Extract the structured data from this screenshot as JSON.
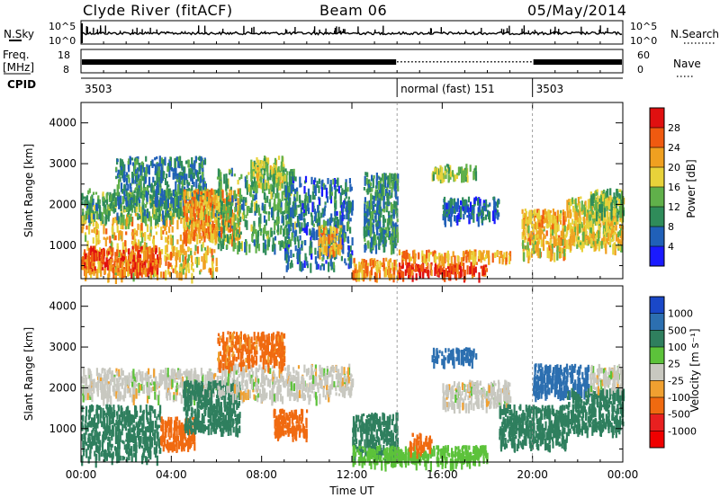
{
  "header": {
    "station": "Clyde River (fitACF)",
    "beam": "Beam 06",
    "date": "05/May/2014"
  },
  "strips": {
    "nsky": {
      "label": "N.Sky",
      "ticks": [
        "10^5",
        "10^0"
      ],
      "right_label": "N.Search",
      "right_ticks": [
        "10^5",
        "10^0"
      ]
    },
    "freq": {
      "label_lines": [
        "Freq.",
        "[MHz]"
      ],
      "ticks": [
        "18",
        "8"
      ],
      "right_label": "Nave",
      "right_ticks": [
        "60",
        "0"
      ]
    },
    "cpid": {
      "label": "CPID",
      "segments": [
        {
          "label": "3503",
          "start_h": 0,
          "end_h": 14
        },
        {
          "label": "normal (fast) 151",
          "start_h": 14,
          "end_h": 20
        },
        {
          "label": "3503",
          "start_h": 20,
          "end_h": 24
        }
      ]
    }
  },
  "chart_data": [
    {
      "type": "heatmap",
      "name": "power",
      "xlim": [
        0,
        24
      ],
      "ylim": [
        180,
        4500
      ],
      "ylabel": "Slant Range [km]",
      "yticks": [
        1000,
        2000,
        3000,
        4000
      ],
      "colorbar": {
        "label": "Power [dB]",
        "ticks": [
          "4",
          "8",
          "12",
          "16",
          "20",
          "24",
          "28"
        ],
        "colors": [
          "#1a1aff",
          "#2060b8",
          "#2f8c5a",
          "#60b04a",
          "#e8d23a",
          "#f0a020",
          "#f05a10",
          "#e01010"
        ],
        "range": [
          0,
          32
        ]
      },
      "regions": [
        {
          "x0": 0.0,
          "x1": 6.0,
          "y0": 300,
          "y1": 1800,
          "value": 20
        },
        {
          "x0": 0.0,
          "x1": 3.5,
          "y0": 400,
          "y1": 1000,
          "value": 26
        },
        {
          "x0": 0.0,
          "x1": 6.0,
          "y0": 1700,
          "y1": 2400,
          "value": 12
        },
        {
          "x0": 1.5,
          "x1": 5.5,
          "y0": 2100,
          "y1": 3200,
          "value": 9
        },
        {
          "x0": 4.5,
          "x1": 7.0,
          "y0": 1200,
          "y1": 2400,
          "value": 22
        },
        {
          "x0": 6.0,
          "x1": 9.5,
          "y0": 1000,
          "y1": 2900,
          "value": 12
        },
        {
          "x0": 7.5,
          "x1": 9.0,
          "y0": 2500,
          "y1": 3200,
          "value": 16
        },
        {
          "x0": 9.0,
          "x1": 12.0,
          "y0": 500,
          "y1": 2700,
          "value": 8
        },
        {
          "x0": 10.5,
          "x1": 11.5,
          "y0": 900,
          "y1": 1500,
          "value": 20
        },
        {
          "x0": 12.0,
          "x1": 14.0,
          "y0": 300,
          "y1": 700,
          "value": 22
        },
        {
          "x0": 12.5,
          "x1": 14.0,
          "y0": 1000,
          "y1": 2800,
          "value": 10
        },
        {
          "x0": 14.0,
          "x1": 18.0,
          "y0": 300,
          "y1": 600,
          "value": 28
        },
        {
          "x0": 14.0,
          "x1": 19.0,
          "y0": 700,
          "y1": 900,
          "value": 22
        },
        {
          "x0": 15.5,
          "x1": 17.5,
          "y0": 2700,
          "y1": 3000,
          "value": 14
        },
        {
          "x0": 16.0,
          "x1": 18.5,
          "y0": 1700,
          "y1": 2200,
          "value": 7
        },
        {
          "x0": 19.5,
          "x1": 21.5,
          "y0": 800,
          "y1": 1900,
          "value": 20
        },
        {
          "x0": 21.5,
          "x1": 24.0,
          "y0": 1000,
          "y1": 2200,
          "value": 18
        },
        {
          "x0": 22.5,
          "x1": 24.0,
          "y0": 1800,
          "y1": 2400,
          "value": 14
        }
      ]
    },
    {
      "type": "heatmap",
      "name": "velocity",
      "xlim": [
        0,
        24
      ],
      "ylim": [
        180,
        4500
      ],
      "ylabel": "Slant Range [km]",
      "xlabel": "Time UT",
      "yticks": [
        1000,
        2000,
        3000,
        4000
      ],
      "xticks": [
        "00:00",
        "04:00",
        "08:00",
        "12:00",
        "16:00",
        "20:00",
        "00:00"
      ],
      "colorbar": {
        "label": "Velocity [m s⁻¹]",
        "ticks": [
          "1000",
          "500",
          "100",
          "25",
          "-25",
          "-100",
          "-500",
          "-1000"
        ],
        "colors": [
          "#1a48c8",
          "#2c6fb0",
          "#2f7f5e",
          "#5cc23a",
          "#c8c8c0",
          "#f0a030",
          "#f06a10",
          "#e82020",
          "#f00000"
        ],
        "range": [
          -1000,
          1000
        ]
      },
      "regions": [
        {
          "x0": 0.0,
          "x1": 3.5,
          "y0": 300,
          "y1": 1600,
          "value": 150
        },
        {
          "x0": 0.0,
          "x1": 6.0,
          "y0": 1800,
          "y1": 2500,
          "value": 0
        },
        {
          "x0": 3.5,
          "x1": 5.0,
          "y0": 600,
          "y1": 1300,
          "value": -150
        },
        {
          "x0": 4.5,
          "x1": 7.0,
          "y0": 1000,
          "y1": 2200,
          "value": 150
        },
        {
          "x0": 6.0,
          "x1": 12.0,
          "y0": 1800,
          "y1": 2600,
          "value": 0
        },
        {
          "x0": 6.0,
          "x1": 9.0,
          "y0": 2600,
          "y1": 3400,
          "value": -120
        },
        {
          "x0": 8.5,
          "x1": 10.0,
          "y0": 900,
          "y1": 1500,
          "value": -150
        },
        {
          "x0": 12.0,
          "x1": 14.0,
          "y0": 400,
          "y1": 1400,
          "value": 150
        },
        {
          "x0": 12.0,
          "x1": 14.0,
          "y0": 200,
          "y1": 600,
          "value": 60
        },
        {
          "x0": 14.0,
          "x1": 18.0,
          "y0": 200,
          "y1": 600,
          "value": 60
        },
        {
          "x0": 14.5,
          "x1": 15.5,
          "y0": 500,
          "y1": 900,
          "value": -150
        },
        {
          "x0": 15.5,
          "x1": 17.5,
          "y0": 2700,
          "y1": 3000,
          "value": 800
        },
        {
          "x0": 16.0,
          "x1": 19.0,
          "y0": 1600,
          "y1": 2200,
          "value": 0
        },
        {
          "x0": 18.5,
          "x1": 21.5,
          "y0": 600,
          "y1": 1600,
          "value": 150
        },
        {
          "x0": 20.0,
          "x1": 22.5,
          "y0": 1900,
          "y1": 2600,
          "value": 600
        },
        {
          "x0": 21.5,
          "x1": 24.0,
          "y0": 1000,
          "y1": 2000,
          "value": 150
        },
        {
          "x0": 22.5,
          "x1": 24.0,
          "y0": 2000,
          "y1": 2600,
          "value": 0
        }
      ]
    }
  ]
}
